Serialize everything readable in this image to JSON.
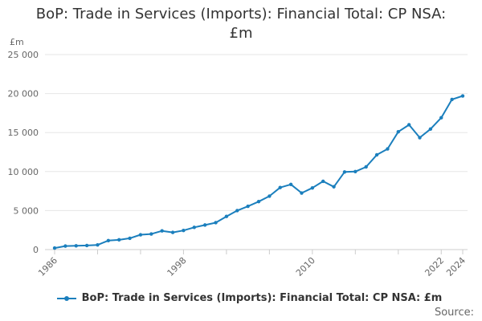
{
  "title_line1": "BoP: Trade in Services (Imports): Financial Total: CP NSA:",
  "title_line2": "£m",
  "source_label": "Source:",
  "colors": {
    "series": "#1b7fbd",
    "grid": "#e6e6e6",
    "axis": "#cccccc",
    "text": "#666666"
  },
  "chart_data": {
    "type": "line",
    "title": "BoP: Trade in Services (Imports): Financial Total: CP NSA: £m",
    "ylabel": "£m",
    "xlabel": "",
    "ylim": [
      0,
      25000
    ],
    "xlim": [
      1986,
      2024
    ],
    "y_ticks": [
      0,
      5000,
      10000,
      15000,
      20000,
      25000
    ],
    "y_tick_labels": [
      "0",
      "5 000",
      "10 000",
      "15 000",
      "20 000",
      "25 000"
    ],
    "x_tick_labels": [
      "1986",
      "1998",
      "2010",
      "2022",
      "2024"
    ],
    "grid": true,
    "legend_position": "bottom",
    "series": [
      {
        "name": "BoP: Trade in Services (Imports): Financial Total: CP NSA: £m",
        "x": [
          1986,
          1987,
          1988,
          1989,
          1990,
          1991,
          1992,
          1993,
          1994,
          1995,
          1996,
          1997,
          1998,
          1999,
          2000,
          2001,
          2002,
          2003,
          2004,
          2005,
          2006,
          2007,
          2008,
          2009,
          2010,
          2011,
          2012,
          2013,
          2014,
          2015,
          2016,
          2017,
          2018,
          2019,
          2020,
          2021,
          2022,
          2023,
          2024
        ],
        "values": [
          200,
          450,
          480,
          520,
          600,
          1150,
          1250,
          1450,
          1900,
          2000,
          2400,
          2200,
          2450,
          2850,
          3150,
          3450,
          4250,
          5000,
          5550,
          6150,
          6850,
          7950,
          8350,
          7250,
          7900,
          8750,
          8050,
          9950,
          10000,
          10600,
          12150,
          12900,
          15100,
          16000,
          14350,
          15450,
          16900,
          19250,
          19700
        ]
      }
    ]
  }
}
